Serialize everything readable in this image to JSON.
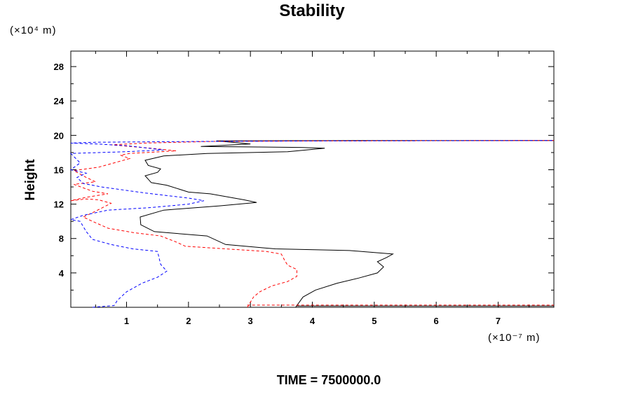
{
  "chart_data": {
    "type": "line",
    "title": "Stability",
    "ylabel": "Height",
    "y_unit_note": "(×10⁴ m)",
    "x_unit_note": "(×10⁻⁷ m)",
    "footer": "TIME = 7500000.0",
    "xlim": [
      0.1,
      7.9
    ],
    "ylim": [
      0,
      29.8
    ],
    "x_tick_labels": [
      "1",
      "2",
      "3",
      "4",
      "5",
      "6",
      "7"
    ],
    "y_tick_labels": [
      "4",
      "8",
      "12",
      "16",
      "20",
      "24",
      "28"
    ],
    "grid": false,
    "series": [
      {
        "color": "#000000",
        "style": "solid",
        "points": [
          [
            3.73,
            0
          ],
          [
            3.85,
            1.2
          ],
          [
            4.05,
            2.0
          ],
          [
            4.4,
            2.8
          ],
          [
            4.75,
            3.4
          ],
          [
            5.05,
            4.0
          ],
          [
            5.15,
            4.7
          ],
          [
            5.05,
            5.3
          ],
          [
            5.2,
            5.8
          ],
          [
            5.3,
            6.2
          ],
          [
            4.6,
            6.6
          ],
          [
            3.4,
            6.8
          ],
          [
            2.6,
            7.3
          ],
          [
            2.3,
            8.3
          ],
          [
            1.45,
            8.8
          ],
          [
            1.23,
            9.6
          ],
          [
            1.22,
            10.5
          ],
          [
            1.6,
            11.3
          ],
          [
            2.5,
            11.8
          ],
          [
            3.1,
            12.2
          ],
          [
            2.9,
            12.5
          ],
          [
            2.35,
            13.2
          ],
          [
            2.0,
            13.4
          ],
          [
            1.65,
            14.2
          ],
          [
            1.4,
            14.5
          ],
          [
            1.3,
            15.3
          ],
          [
            1.5,
            15.7
          ],
          [
            1.55,
            16.1
          ],
          [
            1.35,
            16.5
          ],
          [
            1.3,
            17.1
          ],
          [
            1.6,
            17.6
          ],
          [
            2.3,
            17.9
          ],
          [
            3.6,
            18.1
          ],
          [
            4.2,
            18.5
          ],
          [
            3.8,
            18.6
          ],
          [
            2.2,
            18.7
          ],
          [
            3.0,
            19.0
          ],
          [
            2.45,
            19.35
          ],
          [
            5.2,
            19.4
          ],
          [
            7.9,
            19.4
          ]
        ]
      },
      {
        "color": "#ff0000",
        "style": "dashed",
        "points": [
          [
            2.95,
            0
          ],
          [
            3.05,
            1.2
          ],
          [
            3.15,
            1.8
          ],
          [
            3.35,
            2.5
          ],
          [
            3.6,
            3.0
          ],
          [
            3.75,
            3.6
          ],
          [
            3.75,
            4.4
          ],
          [
            3.6,
            4.9
          ],
          [
            3.55,
            5.5
          ],
          [
            3.5,
            6.2
          ],
          [
            3.25,
            6.5
          ],
          [
            2.6,
            6.8
          ],
          [
            1.95,
            7.1
          ],
          [
            1.8,
            7.6
          ],
          [
            1.55,
            8.3
          ],
          [
            1.1,
            8.7
          ],
          [
            0.7,
            9.2
          ],
          [
            0.45,
            10.0
          ],
          [
            0.3,
            10.5
          ],
          [
            0.45,
            11.0
          ],
          [
            0.75,
            12.1
          ],
          [
            0.55,
            12.5
          ],
          [
            0.35,
            12.6
          ],
          [
            0.1,
            12.4
          ],
          [
            0.35,
            12.8
          ],
          [
            0.7,
            13.2
          ],
          [
            0.45,
            13.5
          ],
          [
            0.15,
            14.3
          ],
          [
            0.5,
            14.6
          ],
          [
            0.35,
            15.1
          ],
          [
            0.15,
            15.9
          ],
          [
            0.55,
            16.3
          ],
          [
            1.05,
            17.3
          ],
          [
            0.9,
            17.7
          ],
          [
            1.05,
            17.9
          ],
          [
            1.8,
            18.2
          ],
          [
            1.4,
            18.5
          ],
          [
            0.75,
            18.9
          ],
          [
            1.3,
            19.1
          ],
          [
            2.4,
            19.3
          ],
          [
            4.2,
            19.35
          ],
          [
            7.9,
            19.4
          ]
        ]
      },
      {
        "color": "#0000ff",
        "style": "dashed",
        "points": [
          [
            0.45,
            0
          ],
          [
            0.8,
            0.2
          ],
          [
            0.85,
            0.8
          ],
          [
            1.0,
            1.8
          ],
          [
            1.25,
            2.8
          ],
          [
            1.5,
            3.5
          ],
          [
            1.65,
            4.2
          ],
          [
            1.55,
            5.0
          ],
          [
            1.5,
            6.5
          ],
          [
            1.1,
            6.8
          ],
          [
            0.75,
            7.3
          ],
          [
            0.45,
            7.9
          ],
          [
            0.35,
            8.8
          ],
          [
            0.25,
            10.0
          ],
          [
            0.1,
            10.2
          ],
          [
            0.3,
            10.7
          ],
          [
            0.7,
            11.3
          ],
          [
            1.4,
            11.6
          ],
          [
            2.0,
            12.0
          ],
          [
            2.25,
            12.4
          ],
          [
            2.0,
            12.7
          ],
          [
            1.3,
            13.3
          ],
          [
            0.6,
            14.0
          ],
          [
            0.3,
            14.4
          ],
          [
            0.2,
            15.1
          ],
          [
            0.35,
            15.6
          ],
          [
            0.1,
            16.0
          ],
          [
            0.25,
            16.8
          ],
          [
            0.1,
            17.9
          ],
          [
            1.0,
            18.1
          ],
          [
            1.6,
            18.3
          ],
          [
            1.0,
            18.8
          ],
          [
            0.5,
            19.0
          ],
          [
            0.1,
            19.1
          ],
          [
            0.5,
            19.2
          ],
          [
            2.3,
            19.3
          ],
          [
            4.2,
            19.35
          ],
          [
            7.9,
            19.4
          ]
        ]
      }
    ]
  },
  "floor_line": {
    "black": {
      "x": [
        3.75,
        7.9
      ],
      "y": 0.15
    },
    "red": {
      "x": [
        2.95,
        7.9
      ],
      "y": 0.25
    }
  }
}
